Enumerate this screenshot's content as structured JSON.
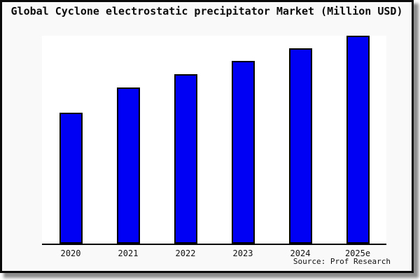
{
  "window": {
    "figure_background": "#f9f9f9",
    "plot_background": "#ffffff",
    "frame_border_color": "#0a0a0a",
    "shadow_color": "#737373"
  },
  "title": "Global Cyclone electrostatic precipitator Market (Million USD)",
  "source_label": "Source: Prof Research",
  "chart_data": {
    "type": "bar",
    "title": "Global Cyclone electrostatic precipitator Market (Million USD)",
    "categories": [
      "2020",
      "2021",
      "2022",
      "2023",
      "2024",
      "2025e"
    ],
    "values": [
      62.8,
      75.1,
      81.5,
      87.8,
      93.8,
      100
    ],
    "values_note": "y-axis is unlabeled in the image; values are relative bar heights with the tallest (2025e) bar = 100",
    "xlabel": "",
    "ylabel": "",
    "ylim": [
      0,
      100
    ],
    "grid": false,
    "legend": null,
    "bar_color": "#0000f5",
    "bar_border_color": "#000000",
    "axis_line_color": "#000000",
    "source": "Source: Prof Research"
  }
}
